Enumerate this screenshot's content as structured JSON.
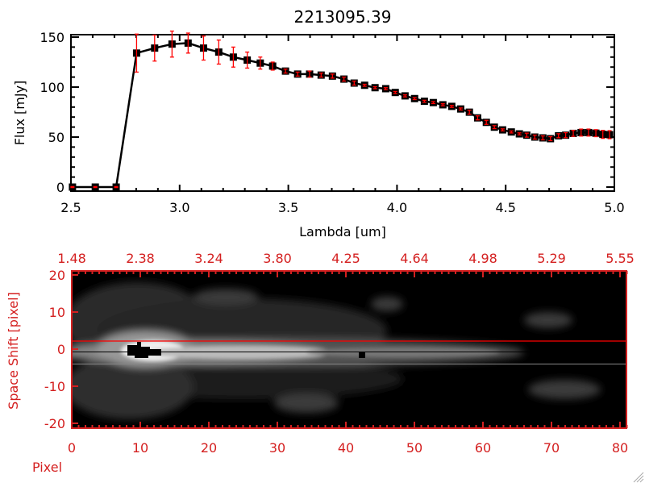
{
  "chart_data": [
    {
      "type": "line",
      "title": "2213095.39",
      "xlabel": "Lambda [um]",
      "ylabel": "Flux [mJy]",
      "xlim": [
        2.5,
        5.0
      ],
      "ylim": [
        -3,
        155
      ],
      "xticks": [
        "2.5",
        "3.0",
        "3.5",
        "4.0",
        "4.5",
        "5.0"
      ],
      "yticks": [
        "0",
        "50",
        "100",
        "150"
      ],
      "xtick_values": [
        2.5,
        3.0,
        3.5,
        4.0,
        4.5,
        5.0
      ],
      "ytick_values": [
        0,
        50,
        100,
        150
      ],
      "series": [
        {
          "name": "flux",
          "color": "#000000",
          "error_color": "#ff0000",
          "x": [
            2.507,
            2.612,
            2.708,
            2.802,
            2.885,
            2.965,
            3.039,
            3.11,
            3.18,
            3.247,
            3.311,
            3.371,
            3.428,
            3.487,
            3.543,
            3.598,
            3.651,
            3.703,
            3.756,
            3.803,
            3.851,
            3.899,
            3.948,
            3.992,
            4.037,
            4.081,
            4.126,
            4.167,
            4.211,
            4.252,
            4.293,
            4.333,
            4.371,
            4.411,
            4.448,
            4.486,
            4.526,
            4.563,
            4.597,
            4.634,
            4.671,
            4.706,
            4.743,
            4.776,
            4.811,
            4.847,
            4.881,
            4.915,
            4.947,
            4.978
          ],
          "y": [
            0,
            0,
            0,
            134,
            139,
            143,
            144,
            139,
            135,
            130,
            127,
            124,
            121,
            116,
            113,
            113,
            112,
            111,
            108,
            104,
            101.8,
            99.4,
            98.4,
            94.6,
            91.2,
            88.5,
            85.8,
            84.5,
            82.3,
            80.7,
            78.1,
            74.9,
            69.2,
            64.7,
            59.9,
            57.2,
            55.1,
            53.2,
            51.9,
            50.0,
            49.2,
            48.4,
            51.3,
            51.9,
            53.7,
            54.5,
            54.5,
            53.9,
            52.7,
            52.4
          ],
          "err": [
            0.5,
            0.5,
            0.5,
            19,
            13,
            13,
            10,
            12,
            12,
            10,
            8,
            6,
            4,
            2,
            2,
            3,
            2,
            2,
            2,
            2,
            1,
            1,
            1,
            1,
            1,
            1,
            1,
            1,
            1,
            1,
            1,
            2,
            2,
            2,
            1.5,
            1,
            1,
            1,
            2,
            2,
            2,
            2,
            2,
            2.5,
            3,
            3.5,
            3.5,
            3.5,
            4,
            4
          ]
        }
      ]
    },
    {
      "type": "heatmap",
      "xlabel": "Pixel",
      "ylabel": "Space Shift [pixel]",
      "xlim": [
        0,
        81
      ],
      "ylim": [
        -21,
        21
      ],
      "xticks": [
        "0",
        "10",
        "20",
        "30",
        "40",
        "50",
        "60",
        "70",
        "80"
      ],
      "xtick_values": [
        0,
        10,
        20,
        30,
        40,
        50,
        60,
        70,
        80
      ],
      "yticks": [
        "-20",
        "-10",
        "0",
        "10",
        "20"
      ],
      "ytick_values": [
        -20,
        -10,
        0,
        10,
        20
      ],
      "top_axis_labels": [
        "1.48",
        "2.38",
        "3.24",
        "3.80",
        "4.25",
        "4.64",
        "4.98",
        "5.29",
        "5.55"
      ],
      "colormap": "grayscale",
      "aperture_lines": [
        3,
        -3
      ],
      "center_line": 0,
      "axis_color": "#d42020",
      "aperture_color": "#ff0000"
    }
  ]
}
